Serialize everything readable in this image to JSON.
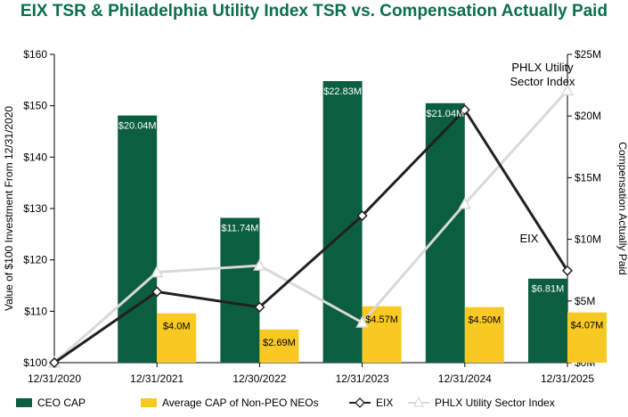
{
  "title": "EIX TSR & Philadelphia Utility Index TSR vs. Compensation Actually Paid",
  "colors": {
    "title": "#0b6e4f",
    "ceo_bar": "#0b5e3e",
    "neo_bar": "#f9c923",
    "eix_line": "#231f20",
    "phlx_line": "#d9d9d9",
    "axis": "#000000",
    "bar_label": "#ffffff"
  },
  "chart_data": {
    "type": "bar",
    "categories": [
      "12/31/2020",
      "12/31/2021",
      "12/30/2022",
      "12/31/2023",
      "12/31/2024",
      "12/31/2025"
    ],
    "left_axis": {
      "label": "Value of $100 Investment From 12/31/2020",
      "ylim": [
        100,
        160
      ],
      "ticks": [
        100,
        110,
        120,
        130,
        140,
        150,
        160
      ],
      "tick_labels": [
        "$100",
        "$110",
        "$120",
        "$130",
        "$140",
        "$150",
        "$160"
      ]
    },
    "right_axis": {
      "label": "Compensation Actually Paid",
      "ylim": [
        0,
        25
      ],
      "ticks": [
        0,
        5,
        10,
        15,
        20,
        25
      ],
      "tick_labels": [
        "$0M",
        "$5M",
        "$10M",
        "$15M",
        "$20M",
        "$25M"
      ]
    },
    "bar_series": [
      {
        "name": "CEO CAP",
        "axis": "right",
        "values": [
          null,
          20.04,
          11.74,
          22.83,
          21.04,
          6.81
        ],
        "labels": [
          null,
          "$20.04M",
          "$11.74M",
          "$22.83M",
          "$21.04M",
          "$6.81M"
        ]
      },
      {
        "name": "Average CAP of Non-PEO NEOs",
        "axis": "right",
        "values": [
          null,
          4.0,
          2.69,
          4.57,
          4.5,
          4.07
        ],
        "labels": [
          null,
          "$4.0M",
          "$2.69M",
          "$4.57M",
          "$4.50M",
          "$4.07M"
        ]
      }
    ],
    "line_series": [
      {
        "name": "EIX",
        "axis": "left",
        "values": [
          100,
          113.8,
          110.8,
          128.6,
          149.2,
          117.9
        ],
        "marker": "diamond",
        "end_label": "EIX"
      },
      {
        "name": "PHLX Utility Sector Index",
        "axis": "left",
        "values": [
          100,
          117.6,
          118.9,
          107.8,
          130.9,
          153.0
        ],
        "marker": "triangle",
        "end_label": "PHLX Utility Sector Index"
      }
    ],
    "annotations": {
      "phlx_line1": "PHLX Utility",
      "phlx_line2": "Sector Index",
      "eix": "EIX"
    },
    "legend": {
      "position": "bottom",
      "items": [
        "CEO CAP",
        "Average CAP of Non-PEO NEOs",
        "EIX",
        "PHLX Utility Sector Index"
      ]
    }
  }
}
